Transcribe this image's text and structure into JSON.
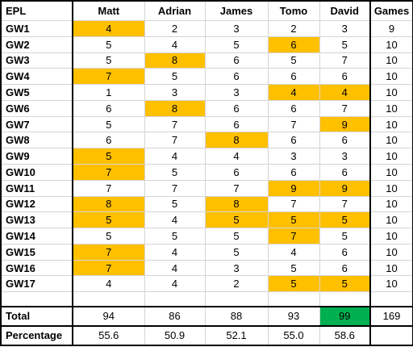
{
  "colors": {
    "highlight": "#ffc000",
    "best_total": "#00b050"
  },
  "headers": [
    "EPL",
    "Matt",
    "Adrian",
    "James",
    "Tomo",
    "David",
    "Games"
  ],
  "rows": [
    {
      "label": "GW1",
      "values": [
        "4",
        "2",
        "3",
        "2",
        "3"
      ],
      "games": "9",
      "highlight": [
        0
      ]
    },
    {
      "label": "GW2",
      "values": [
        "5",
        "4",
        "5",
        "6",
        "5"
      ],
      "games": "10",
      "highlight": [
        3
      ]
    },
    {
      "label": "GW3",
      "values": [
        "5",
        "8",
        "6",
        "5",
        "7"
      ],
      "games": "10",
      "highlight": [
        1
      ]
    },
    {
      "label": "GW4",
      "values": [
        "7",
        "5",
        "6",
        "6",
        "6"
      ],
      "games": "10",
      "highlight": [
        0
      ]
    },
    {
      "label": "GW5",
      "values": [
        "1",
        "3",
        "3",
        "4",
        "4"
      ],
      "games": "10",
      "highlight": [
        3,
        4
      ]
    },
    {
      "label": "GW6",
      "values": [
        "6",
        "8",
        "6",
        "6",
        "7"
      ],
      "games": "10",
      "highlight": [
        1
      ]
    },
    {
      "label": "GW7",
      "values": [
        "5",
        "7",
        "6",
        "7",
        "9"
      ],
      "games": "10",
      "highlight": [
        4
      ]
    },
    {
      "label": "GW8",
      "values": [
        "6",
        "7",
        "8",
        "6",
        "6"
      ],
      "games": "10",
      "highlight": [
        2
      ]
    },
    {
      "label": "GW9",
      "values": [
        "5",
        "4",
        "4",
        "3",
        "3"
      ],
      "games": "10",
      "highlight": [
        0
      ]
    },
    {
      "label": "GW10",
      "values": [
        "7",
        "5",
        "6",
        "6",
        "6"
      ],
      "games": "10",
      "highlight": [
        0
      ]
    },
    {
      "label": "GW11",
      "values": [
        "7",
        "7",
        "7",
        "9",
        "9"
      ],
      "games": "10",
      "highlight": [
        3,
        4
      ]
    },
    {
      "label": "GW12",
      "values": [
        "8",
        "5",
        "8",
        "7",
        "7"
      ],
      "games": "10",
      "highlight": [
        0,
        2
      ]
    },
    {
      "label": "GW13",
      "values": [
        "5",
        "4",
        "5",
        "5",
        "5"
      ],
      "games": "10",
      "highlight": [
        0,
        2,
        3,
        4
      ]
    },
    {
      "label": "GW14",
      "values": [
        "5",
        "5",
        "5",
        "7",
        "5"
      ],
      "games": "10",
      "highlight": [
        3
      ]
    },
    {
      "label": "GW15",
      "values": [
        "7",
        "4",
        "5",
        "4",
        "6"
      ],
      "games": "10",
      "highlight": [
        0
      ]
    },
    {
      "label": "GW16",
      "values": [
        "7",
        "4",
        "3",
        "5",
        "6"
      ],
      "games": "10",
      "highlight": [
        0
      ]
    },
    {
      "label": "GW17",
      "values": [
        "4",
        "4",
        "2",
        "5",
        "5"
      ],
      "games": "10",
      "highlight": [
        3,
        4
      ]
    }
  ],
  "total": {
    "label": "Total",
    "values": [
      "94",
      "86",
      "88",
      "93",
      "99"
    ],
    "games": "169",
    "best_index": 4
  },
  "percentage": {
    "label": "Percentage",
    "values": [
      "55.6",
      "50.9",
      "52.1",
      "55.0",
      "58.6"
    ],
    "games": ""
  }
}
